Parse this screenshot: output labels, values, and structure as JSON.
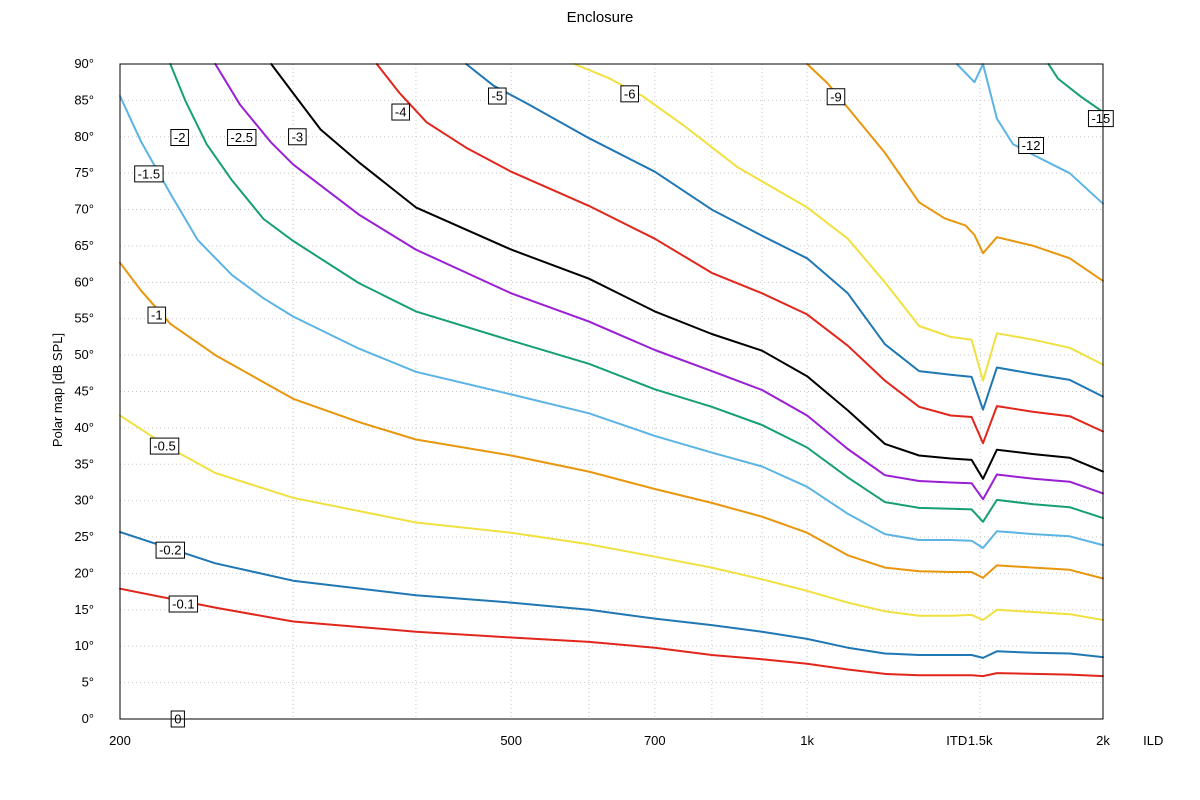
{
  "chart_data": {
    "type": "line",
    "title": "Enclosure",
    "ylabel": "Polar map [dB SPL]",
    "x_scale": "log",
    "xlim": [
      200,
      2000
    ],
    "ylim": [
      0,
      90
    ],
    "x_ticks": [
      {
        "value": 200,
        "label": "200"
      },
      {
        "value": 500,
        "label": "500"
      },
      {
        "value": 700,
        "label": "700"
      },
      {
        "value": 1000,
        "label": "1k"
      },
      {
        "value": 1500,
        "label": "1.5k"
      },
      {
        "value": 2000,
        "label": "2k"
      }
    ],
    "x_minor_grid": [
      300,
      400,
      600,
      800,
      900
    ],
    "x_extra_labels": [
      {
        "value": 1420,
        "label": "ITD"
      },
      {
        "value": 2250,
        "label": "ILD"
      }
    ],
    "y_ticks": [
      {
        "value": 0,
        "label": "0°"
      },
      {
        "value": 5,
        "label": "5°"
      },
      {
        "value": 10,
        "label": "10°"
      },
      {
        "value": 15,
        "label": "15°"
      },
      {
        "value": 20,
        "label": "20°"
      },
      {
        "value": 25,
        "label": "25°"
      },
      {
        "value": 30,
        "label": "30°"
      },
      {
        "value": 35,
        "label": "35°"
      },
      {
        "value": 40,
        "label": "40°"
      },
      {
        "value": 45,
        "label": "45°"
      },
      {
        "value": 50,
        "label": "50°"
      },
      {
        "value": 55,
        "label": "55°"
      },
      {
        "value": 60,
        "label": "60°"
      },
      {
        "value": 65,
        "label": "65°"
      },
      {
        "value": 70,
        "label": "70°"
      },
      {
        "value": 75,
        "label": "75°"
      },
      {
        "value": 80,
        "label": "80°"
      },
      {
        "value": 85,
        "label": "85°"
      },
      {
        "value": 90,
        "label": "90°"
      }
    ],
    "grid": true,
    "series": [
      {
        "level": "-0.1",
        "color": "#e1261c",
        "label_at": [
          232,
          15.8
        ],
        "points": [
          [
            200,
            17.9
          ],
          [
            250,
            15.3
          ],
          [
            300,
            13.4
          ],
          [
            400,
            12.0
          ],
          [
            500,
            11.2
          ],
          [
            600,
            10.6
          ],
          [
            700,
            9.8
          ],
          [
            800,
            8.8
          ],
          [
            900,
            8.2
          ],
          [
            1000,
            7.6
          ],
          [
            1100,
            6.8
          ],
          [
            1200,
            6.2
          ],
          [
            1300,
            6.0
          ],
          [
            1400,
            6.0
          ],
          [
            1470,
            6.0
          ],
          [
            1510,
            5.9
          ],
          [
            1560,
            6.3
          ],
          [
            1700,
            6.2
          ],
          [
            1850,
            6.1
          ],
          [
            2000,
            5.9
          ]
        ]
      },
      {
        "level": "-0.2",
        "color": "#1f77b4",
        "label_at": [
          225,
          23.2
        ],
        "points": [
          [
            200,
            25.7
          ],
          [
            250,
            21.4
          ],
          [
            300,
            19.0
          ],
          [
            400,
            17.0
          ],
          [
            500,
            16.0
          ],
          [
            600,
            15.0
          ],
          [
            700,
            13.8
          ],
          [
            800,
            12.9
          ],
          [
            900,
            12.0
          ],
          [
            1000,
            11.0
          ],
          [
            1100,
            9.8
          ],
          [
            1200,
            9.0
          ],
          [
            1300,
            8.8
          ],
          [
            1400,
            8.8
          ],
          [
            1470,
            8.8
          ],
          [
            1510,
            8.4
          ],
          [
            1560,
            9.3
          ],
          [
            1700,
            9.1
          ],
          [
            1850,
            9.0
          ],
          [
            2000,
            8.5
          ]
        ]
      },
      {
        "level": "-0.5",
        "color": "#f0e040",
        "label_at": [
          222,
          37.5
        ],
        "points": [
          [
            200,
            41.7
          ],
          [
            225,
            37.2
          ],
          [
            250,
            33.8
          ],
          [
            300,
            30.4
          ],
          [
            400,
            27.0
          ],
          [
            500,
            25.6
          ],
          [
            600,
            24.0
          ],
          [
            700,
            22.3
          ],
          [
            800,
            20.8
          ],
          [
            900,
            19.2
          ],
          [
            1000,
            17.6
          ],
          [
            1100,
            16.0
          ],
          [
            1200,
            14.8
          ],
          [
            1300,
            14.2
          ],
          [
            1400,
            14.2
          ],
          [
            1470,
            14.3
          ],
          [
            1510,
            13.6
          ],
          [
            1560,
            15.0
          ],
          [
            1700,
            14.7
          ],
          [
            1850,
            14.4
          ],
          [
            2000,
            13.6
          ]
        ]
      },
      {
        "level": "-1",
        "color": "#e8960c",
        "label_at": [
          218,
          55.5
        ],
        "points": [
          [
            200,
            62.7
          ],
          [
            210,
            58.9
          ],
          [
            225,
            54.3
          ],
          [
            250,
            50.0
          ],
          [
            300,
            44.0
          ],
          [
            350,
            40.8
          ],
          [
            400,
            38.4
          ],
          [
            500,
            36.2
          ],
          [
            600,
            34.0
          ],
          [
            700,
            31.6
          ],
          [
            800,
            29.7
          ],
          [
            900,
            27.8
          ],
          [
            1000,
            25.6
          ],
          [
            1100,
            22.5
          ],
          [
            1200,
            20.8
          ],
          [
            1300,
            20.3
          ],
          [
            1400,
            20.2
          ],
          [
            1470,
            20.2
          ],
          [
            1510,
            19.4
          ],
          [
            1560,
            21.1
          ],
          [
            1700,
            20.8
          ],
          [
            1850,
            20.5
          ],
          [
            2000,
            19.3
          ]
        ]
      },
      {
        "level": "-1.5",
        "color": "#5bb4e4",
        "label_at": [
          214,
          74.9
        ],
        "points": [
          [
            200,
            85.6
          ],
          [
            210,
            79.4
          ],
          [
            225,
            72.2
          ],
          [
            240,
            65.8
          ],
          [
            260,
            61.0
          ],
          [
            280,
            57.8
          ],
          [
            300,
            55.3
          ],
          [
            350,
            50.9
          ],
          [
            400,
            47.7
          ],
          [
            500,
            44.6
          ],
          [
            600,
            42.0
          ],
          [
            700,
            38.9
          ],
          [
            800,
            36.6
          ],
          [
            900,
            34.7
          ],
          [
            1000,
            31.9
          ],
          [
            1100,
            28.2
          ],
          [
            1200,
            25.4
          ],
          [
            1300,
            24.6
          ],
          [
            1400,
            24.6
          ],
          [
            1470,
            24.5
          ],
          [
            1510,
            23.5
          ],
          [
            1560,
            25.8
          ],
          [
            1700,
            25.4
          ],
          [
            1850,
            25.1
          ],
          [
            2000,
            23.9
          ]
        ]
      },
      {
        "level": "-2",
        "color": "#16a070",
        "label_at": [
          230,
          79.9
        ],
        "points": [
          [
            225,
            90
          ],
          [
            233,
            85.0
          ],
          [
            245,
            79.0
          ],
          [
            260,
            74.0
          ],
          [
            280,
            68.7
          ],
          [
            300,
            65.7
          ],
          [
            350,
            59.9
          ],
          [
            400,
            56.0
          ],
          [
            500,
            52.0
          ],
          [
            600,
            48.8
          ],
          [
            700,
            45.3
          ],
          [
            800,
            42.9
          ],
          [
            900,
            40.4
          ],
          [
            1000,
            37.3
          ],
          [
            1100,
            33.2
          ],
          [
            1200,
            29.8
          ],
          [
            1300,
            29.0
          ],
          [
            1400,
            28.9
          ],
          [
            1470,
            28.8
          ],
          [
            1510,
            27.1
          ],
          [
            1560,
            30.1
          ],
          [
            1700,
            29.5
          ],
          [
            1850,
            29.1
          ],
          [
            2000,
            27.6
          ]
        ]
      },
      {
        "level": "-2.5",
        "color": "#9a1fd4",
        "label_at": [
          266,
          79.9
        ],
        "points": [
          [
            250,
            90
          ],
          [
            265,
            84.4
          ],
          [
            285,
            79.2
          ],
          [
            300,
            76.2
          ],
          [
            350,
            69.3
          ],
          [
            400,
            64.5
          ],
          [
            500,
            58.5
          ],
          [
            600,
            54.6
          ],
          [
            700,
            50.7
          ],
          [
            800,
            47.8
          ],
          [
            900,
            45.2
          ],
          [
            1000,
            41.7
          ],
          [
            1100,
            37.1
          ],
          [
            1200,
            33.5
          ],
          [
            1300,
            32.7
          ],
          [
            1400,
            32.5
          ],
          [
            1470,
            32.4
          ],
          [
            1510,
            30.2
          ],
          [
            1560,
            33.6
          ],
          [
            1700,
            33.0
          ],
          [
            1850,
            32.6
          ],
          [
            2000,
            31.0
          ]
        ]
      },
      {
        "level": "-3",
        "color": "#000000",
        "label_at": [
          303,
          80.0
        ],
        "points": [
          [
            285,
            90
          ],
          [
            300,
            86.0
          ],
          [
            320,
            81.0
          ],
          [
            350,
            76.5
          ],
          [
            400,
            70.3
          ],
          [
            500,
            64.5
          ],
          [
            600,
            60.5
          ],
          [
            700,
            56.0
          ],
          [
            800,
            52.9
          ],
          [
            900,
            50.6
          ],
          [
            1000,
            47.1
          ],
          [
            1100,
            42.4
          ],
          [
            1200,
            37.8
          ],
          [
            1300,
            36.2
          ],
          [
            1400,
            35.8
          ],
          [
            1470,
            35.6
          ],
          [
            1510,
            33.0
          ],
          [
            1560,
            37.0
          ],
          [
            1700,
            36.4
          ],
          [
            1850,
            35.9
          ],
          [
            2000,
            34.0
          ]
        ]
      },
      {
        "level": "-4",
        "color": "#e1261c",
        "label_at": [
          386,
          83.4
        ],
        "points": [
          [
            365,
            90
          ],
          [
            385,
            86.0
          ],
          [
            410,
            82.0
          ],
          [
            450,
            78.5
          ],
          [
            500,
            75.2
          ],
          [
            600,
            70.5
          ],
          [
            700,
            66.0
          ],
          [
            800,
            61.3
          ],
          [
            900,
            58.5
          ],
          [
            1000,
            55.6
          ],
          [
            1100,
            51.3
          ],
          [
            1200,
            46.5
          ],
          [
            1300,
            42.9
          ],
          [
            1400,
            41.7
          ],
          [
            1470,
            41.5
          ],
          [
            1510,
            37.9
          ],
          [
            1560,
            43.0
          ],
          [
            1700,
            42.2
          ],
          [
            1850,
            41.6
          ],
          [
            2000,
            39.5
          ]
        ]
      },
      {
        "level": "-5",
        "color": "#1f77b4",
        "label_at": [
          484,
          85.6
        ],
        "points": [
          [
            450,
            90
          ],
          [
            480,
            87.0
          ],
          [
            520,
            84.5
          ],
          [
            600,
            79.8
          ],
          [
            700,
            75.2
          ],
          [
            800,
            70.0
          ],
          [
            900,
            66.4
          ],
          [
            1000,
            63.3
          ],
          [
            1100,
            58.5
          ],
          [
            1200,
            51.5
          ],
          [
            1300,
            47.8
          ],
          [
            1400,
            47.3
          ],
          [
            1470,
            47.0
          ],
          [
            1510,
            42.5
          ],
          [
            1560,
            48.3
          ],
          [
            1700,
            47.4
          ],
          [
            1850,
            46.6
          ],
          [
            2000,
            44.3
          ]
        ]
      },
      {
        "level": "-6",
        "color": "#f0e040",
        "label_at": [
          660,
          85.9
        ],
        "points": [
          [
            580,
            90
          ],
          [
            630,
            88.0
          ],
          [
            680,
            85.6
          ],
          [
            750,
            81.5
          ],
          [
            850,
            75.8
          ],
          [
            1000,
            70.3
          ],
          [
            1100,
            66.0
          ],
          [
            1200,
            60.0
          ],
          [
            1300,
            54.0
          ],
          [
            1400,
            52.5
          ],
          [
            1470,
            52.1
          ],
          [
            1510,
            46.5
          ],
          [
            1560,
            53.0
          ],
          [
            1700,
            52.1
          ],
          [
            1850,
            51.0
          ],
          [
            2000,
            48.7
          ]
        ]
      },
      {
        "level": "-9",
        "color": "#e8960c",
        "label_at": [
          1070,
          85.5
        ],
        "points": [
          [
            1000,
            90
          ],
          [
            1050,
            87.3
          ],
          [
            1100,
            84.0
          ],
          [
            1200,
            77.8
          ],
          [
            1300,
            71.0
          ],
          [
            1380,
            68.8
          ],
          [
            1450,
            67.8
          ],
          [
            1480,
            66.5
          ],
          [
            1510,
            64.0
          ],
          [
            1560,
            66.2
          ],
          [
            1700,
            65.0
          ],
          [
            1850,
            63.3
          ],
          [
            2000,
            60.2
          ]
        ]
      },
      {
        "level": "-12",
        "color": "#5bb4e4",
        "label_at": [
          1690,
          78.8
        ],
        "points": [
          [
            1420,
            90
          ],
          [
            1480,
            87.5
          ],
          [
            1510,
            90
          ],
          [
            1560,
            82.5
          ],
          [
            1620,
            79.0
          ],
          [
            1700,
            77.5
          ],
          [
            1850,
            75.0
          ],
          [
            2000,
            70.8
          ]
        ]
      },
      {
        "level": "-15",
        "color": "#16a070",
        "label_at": [
          1990,
          82.5
        ],
        "points": [
          [
            1760,
            90
          ],
          [
            1800,
            88.0
          ],
          [
            1900,
            85.5
          ],
          [
            2000,
            83.4
          ]
        ]
      },
      {
        "level": "0",
        "color": "#000000",
        "label_at": [
          229,
          0
        ],
        "points": []
      }
    ]
  }
}
